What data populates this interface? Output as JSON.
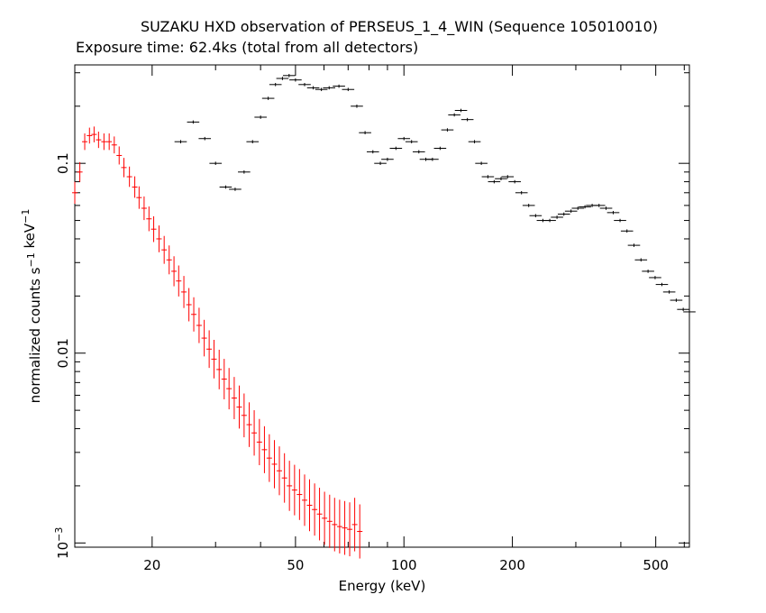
{
  "chart_data": {
    "type": "scatter",
    "title": "SUZAKU HXD observation of PERSEUS_1_4_WIN (Sequence 105010010)",
    "subtitle": "Exposure time: 62.4ks (total from all detectors)",
    "xlabel": "Energy (keV)",
    "ylabel": "normalized counts s^-1 keV^-1",
    "xscale": "log",
    "yscale": "log",
    "xlim": [
      12.2,
      620
    ],
    "ylim": [
      0.00095,
      0.33
    ],
    "x_ticks": [
      {
        "value": 20,
        "label": "20"
      },
      {
        "value": 50,
        "label": "50"
      },
      {
        "value": 100,
        "label": "100"
      },
      {
        "value": 200,
        "label": "200"
      },
      {
        "value": 500,
        "label": "500"
      }
    ],
    "y_ticks": [
      {
        "value": 0.1,
        "label": "0.1"
      },
      {
        "value": 0.01,
        "label": "0.01"
      },
      {
        "value": 0.001,
        "label": "10^-3"
      }
    ],
    "grid": false,
    "colors": {
      "pin": "#ff0000",
      "gso": "#000000"
    },
    "series": [
      {
        "color": "#ff0000",
        "x": [
          12.2,
          12.6,
          13.0,
          13.4,
          13.8,
          14.2,
          14.7,
          15.2,
          15.7,
          16.2,
          16.7,
          17.3,
          17.9,
          18.4,
          19.0,
          19.6,
          20.2,
          20.9,
          21.6,
          22.3,
          23.0,
          23.7,
          24.5,
          25.3,
          26.1,
          27.0,
          27.9,
          28.8,
          29.7,
          30.7,
          31.7,
          32.7,
          33.8,
          34.9,
          36.0,
          37.2,
          38.4,
          39.7,
          41.0,
          42.3,
          43.7,
          45.1,
          46.6,
          48.1,
          49.7,
          51.3,
          53.0,
          54.7,
          56.5,
          58.3,
          60.2,
          62.2,
          64.2,
          66.3,
          68.5,
          70.7,
          73.0,
          75.4
        ],
        "y": [
          0.07,
          0.09,
          0.13,
          0.14,
          0.142,
          0.133,
          0.13,
          0.13,
          0.125,
          0.11,
          0.095,
          0.085,
          0.075,
          0.066,
          0.058,
          0.051,
          0.045,
          0.04,
          0.035,
          0.031,
          0.027,
          0.024,
          0.021,
          0.018,
          0.016,
          0.014,
          0.012,
          0.0105,
          0.0093,
          0.0082,
          0.0073,
          0.0065,
          0.0058,
          0.0052,
          0.0047,
          0.0042,
          0.0038,
          0.0034,
          0.0031,
          0.0028,
          0.0026,
          0.0024,
          0.0022,
          0.002,
          0.0019,
          0.0018,
          0.00168,
          0.00158,
          0.0015,
          0.00142,
          0.00135,
          0.0013,
          0.00125,
          0.00122,
          0.0012,
          0.00118,
          0.00125,
          0.00115
        ]
      },
      {
        "color": "#000000",
        "x": [
          24,
          26,
          28,
          30,
          32,
          34,
          36,
          38,
          40,
          42,
          44,
          46,
          48,
          50,
          53,
          56,
          59,
          62,
          66,
          70,
          74,
          78,
          82,
          86,
          90,
          95,
          100,
          105,
          110,
          115,
          120,
          126,
          132,
          138,
          144,
          150,
          157,
          164,
          171,
          178,
          186,
          194,
          203,
          212,
          222,
          232,
          243,
          254,
          266,
          278,
          291,
          304,
          318,
          333,
          348,
          364,
          381,
          398,
          416,
          435,
          455,
          476,
          498,
          520,
          545,
          570,
          596,
          620
        ],
        "y": [
          0.13,
          0.165,
          0.135,
          0.1,
          0.075,
          0.073,
          0.09,
          0.13,
          0.175,
          0.22,
          0.26,
          0.28,
          0.29,
          0.275,
          0.26,
          0.25,
          0.245,
          0.25,
          0.255,
          0.245,
          0.2,
          0.145,
          0.115,
          0.1,
          0.105,
          0.12,
          0.135,
          0.13,
          0.115,
          0.105,
          0.105,
          0.12,
          0.15,
          0.18,
          0.19,
          0.17,
          0.13,
          0.1,
          0.085,
          0.08,
          0.083,
          0.085,
          0.08,
          0.07,
          0.06,
          0.053,
          0.05,
          0.05,
          0.052,
          0.054,
          0.056,
          0.058,
          0.059,
          0.06,
          0.06,
          0.058,
          0.055,
          0.05,
          0.044,
          0.037,
          0.031,
          0.027,
          0.025,
          0.023,
          0.021,
          0.019,
          0.017,
          0.0165
        ]
      }
    ]
  }
}
